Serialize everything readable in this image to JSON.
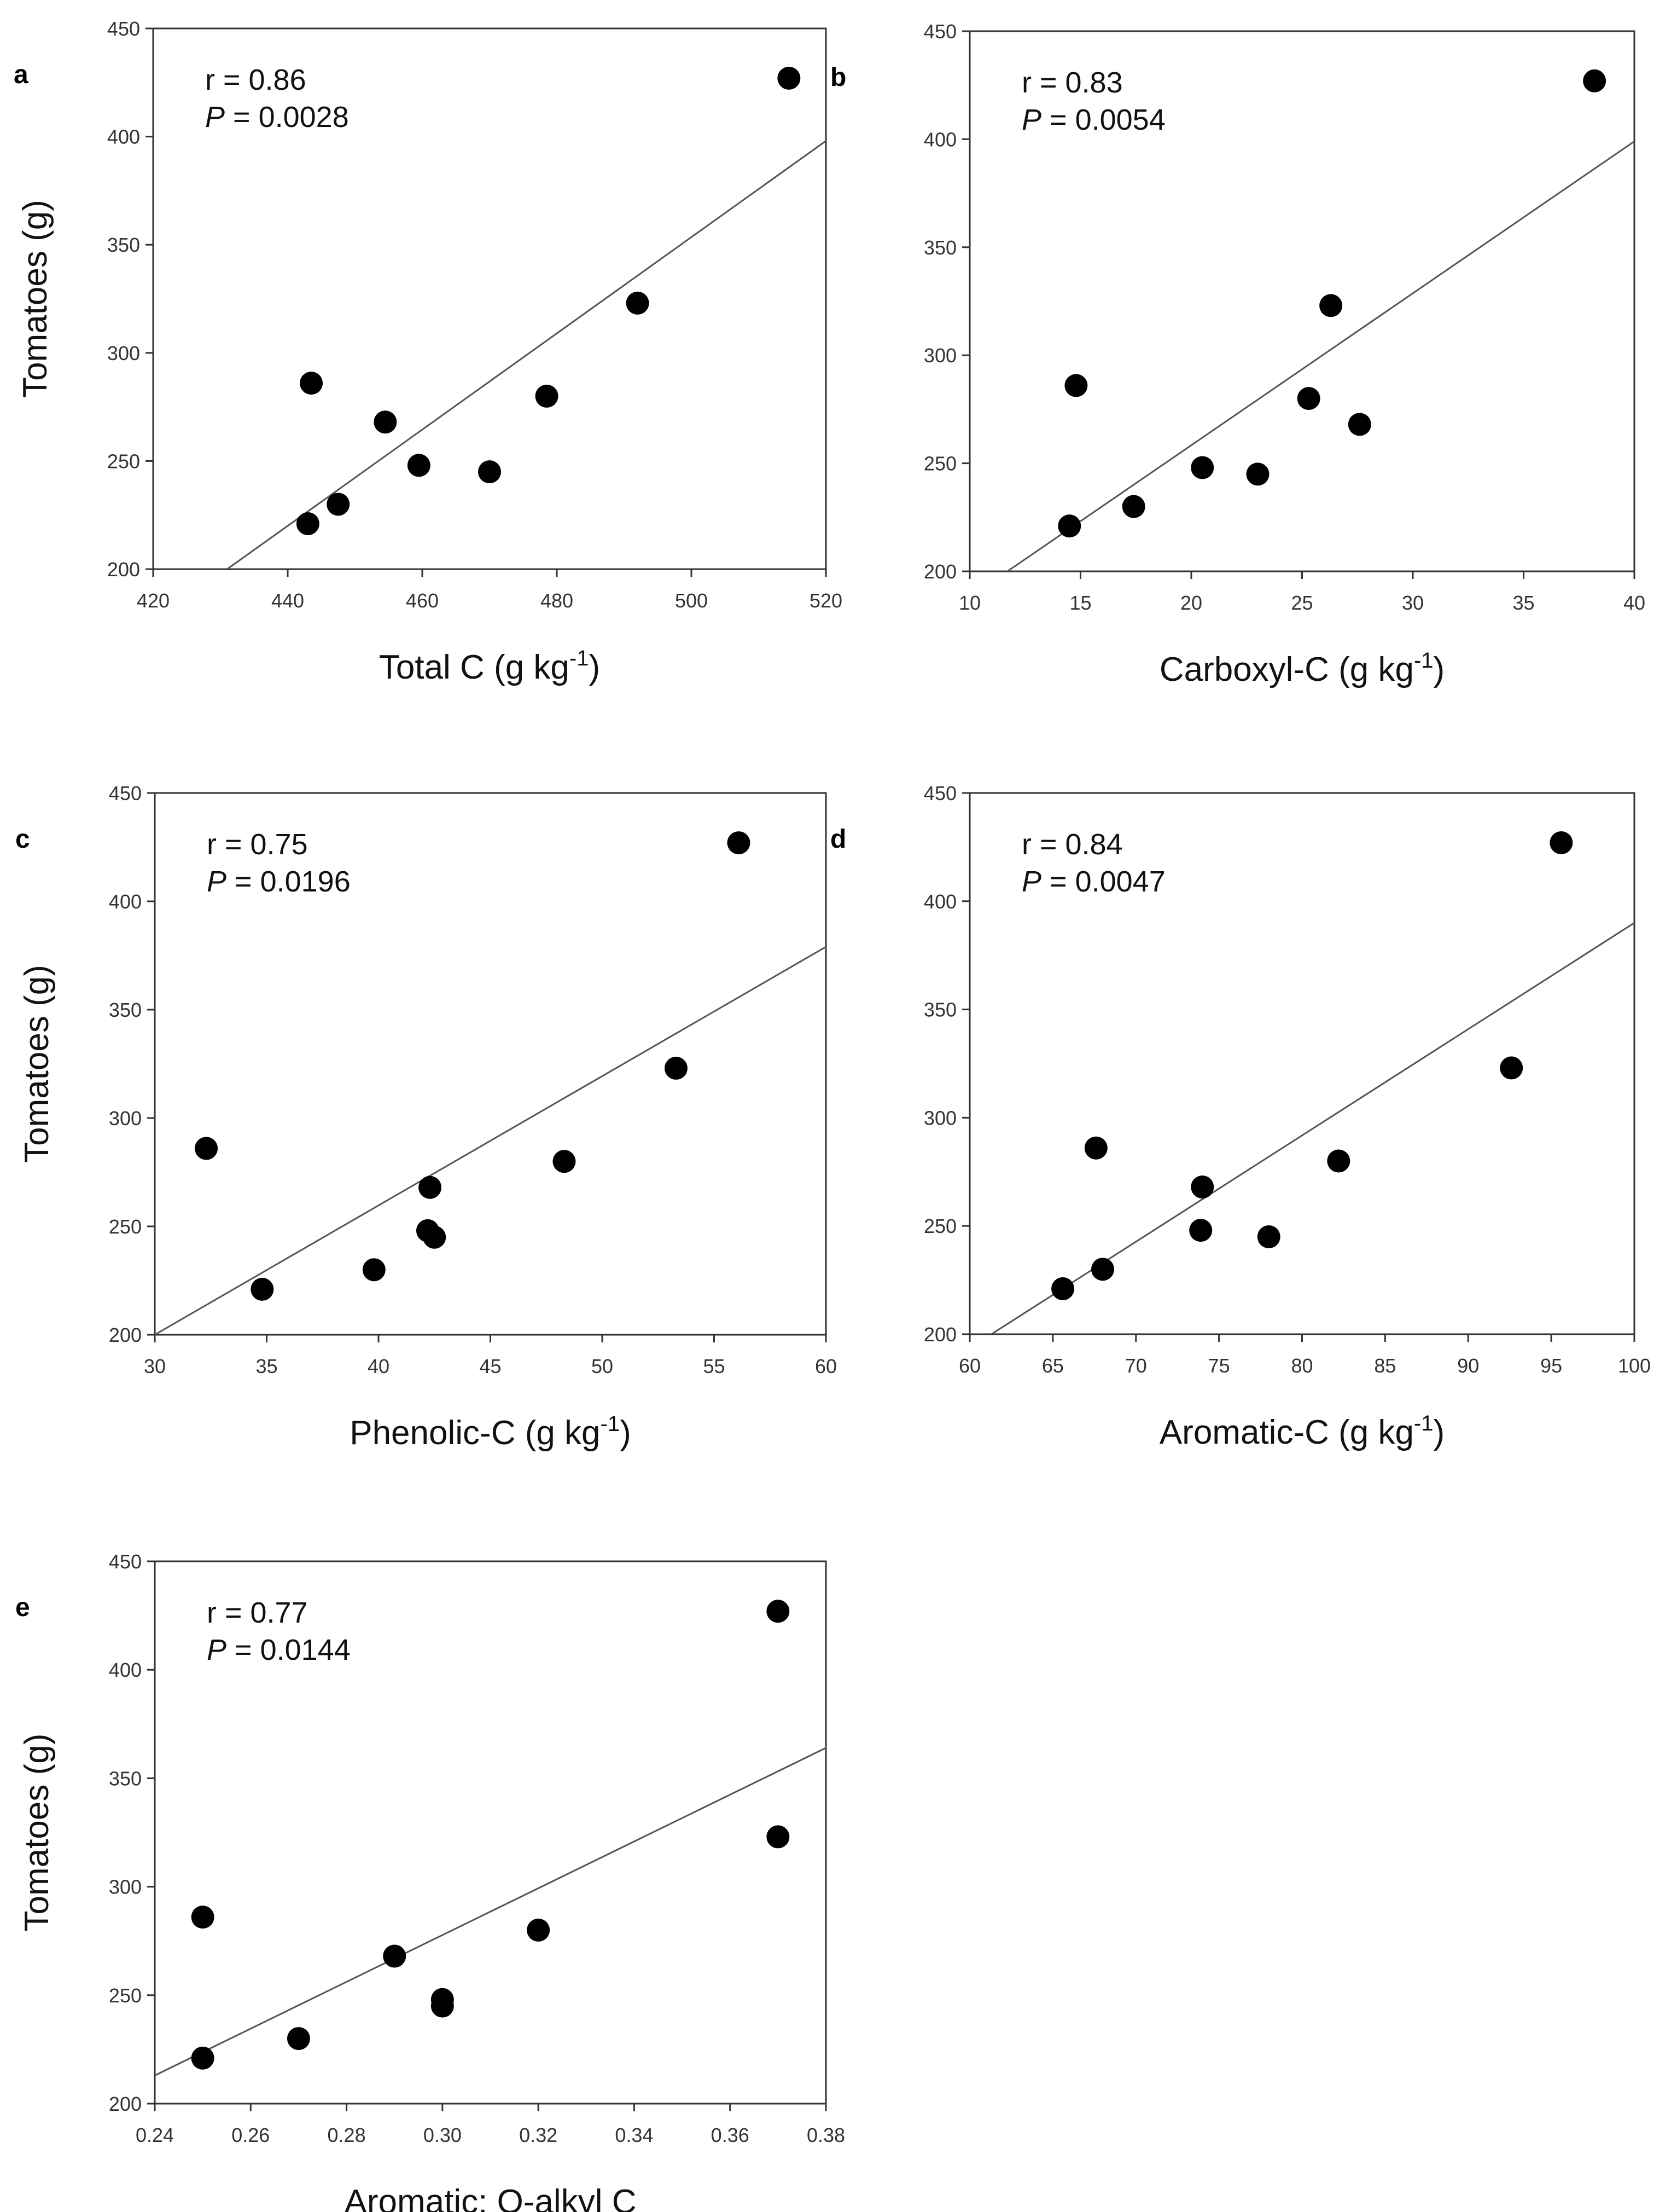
{
  "figure": {
    "y_axis_label": "Tomatoes (g)",
    "marker_color": "#000000",
    "line_color": "#555555",
    "frame_color": "#333333"
  },
  "chart_data": [
    {
      "panel": "a",
      "type": "scatter",
      "xlabel": "Total C (g kg",
      "xlabel_sup": "-1",
      "xlabel_close": ")",
      "ylabel": "Tomatoes (g)",
      "xlim": [
        420,
        520
      ],
      "ylim": [
        200,
        450
      ],
      "xticks": [
        "420",
        "440",
        "460",
        "480",
        "500",
        "520"
      ],
      "yticks": [
        "200",
        "250",
        "300",
        "350",
        "400",
        "450"
      ],
      "points": [
        {
          "x": 443,
          "y": 221
        },
        {
          "x": 443.5,
          "y": 286
        },
        {
          "x": 447.5,
          "y": 230
        },
        {
          "x": 454.5,
          "y": 268
        },
        {
          "x": 459.5,
          "y": 248
        },
        {
          "x": 470,
          "y": 245
        },
        {
          "x": 478.5,
          "y": 280
        },
        {
          "x": 492,
          "y": 323
        },
        {
          "x": 514.5,
          "y": 427
        }
      ],
      "fit": {
        "x1": 431,
        "y1": 200,
        "x2": 520,
        "y2": 398
      },
      "r_text": "r = 0.86",
      "p_label": "P",
      "p_value": " = 0.0028"
    },
    {
      "panel": "b",
      "type": "scatter",
      "xlabel": "Carboxyl-C (g kg",
      "xlabel_sup": "-1",
      "xlabel_close": ")",
      "ylabel": "",
      "xlim": [
        10,
        40
      ],
      "ylim": [
        200,
        450
      ],
      "xticks": [
        "10",
        "15",
        "20",
        "25",
        "30",
        "35",
        "40"
      ],
      "yticks": [
        "200",
        "250",
        "300",
        "350",
        "400",
        "450"
      ],
      "points": [
        {
          "x": 14.5,
          "y": 221
        },
        {
          "x": 14.8,
          "y": 286
        },
        {
          "x": 17.4,
          "y": 230
        },
        {
          "x": 20.5,
          "y": 248
        },
        {
          "x": 23,
          "y": 245
        },
        {
          "x": 25.3,
          "y": 280
        },
        {
          "x": 26.3,
          "y": 323
        },
        {
          "x": 27.6,
          "y": 268
        },
        {
          "x": 38.2,
          "y": 427
        }
      ],
      "fit": {
        "x1": 11.7,
        "y1": 200,
        "x2": 40,
        "y2": 399
      },
      "r_text": "r = 0.83",
      "p_label": "P",
      "p_value": " = 0.0054"
    },
    {
      "panel": "c",
      "type": "scatter",
      "xlabel": "Phenolic-C (g kg",
      "xlabel_sup": "-1",
      "xlabel_close": ")",
      "ylabel": "Tomatoes (g)",
      "xlim": [
        30,
        60
      ],
      "ylim": [
        200,
        450
      ],
      "xticks": [
        "30",
        "35",
        "40",
        "45",
        "50",
        "55",
        "60"
      ],
      "yticks": [
        "200",
        "250",
        "300",
        "350",
        "400",
        "450"
      ],
      "points": [
        {
          "x": 32.3,
          "y": 286
        },
        {
          "x": 34.8,
          "y": 221
        },
        {
          "x": 39.8,
          "y": 230
        },
        {
          "x": 42.3,
          "y": 268
        },
        {
          "x": 42.2,
          "y": 248
        },
        {
          "x": 42.5,
          "y": 245
        },
        {
          "x": 48.3,
          "y": 280
        },
        {
          "x": 53.3,
          "y": 323
        },
        {
          "x": 56.1,
          "y": 427
        }
      ],
      "fit": {
        "x1": 30,
        "y1": 200,
        "x2": 60,
        "y2": 379
      },
      "r_text": "r = 0.75",
      "p_label": "P",
      "p_value": " = 0.0196"
    },
    {
      "panel": "d",
      "type": "scatter",
      "xlabel": "Aromatic-C (g kg",
      "xlabel_sup": "-1",
      "xlabel_close": ")",
      "ylabel": "",
      "xlim": [
        60,
        100
      ],
      "ylim": [
        200,
        450
      ],
      "xticks": [
        "60",
        "65",
        "70",
        "75",
        "80",
        "85",
        "90",
        "95",
        "100"
      ],
      "yticks": [
        "200",
        "250",
        "300",
        "350",
        "400",
        "450"
      ],
      "points": [
        {
          "x": 65.6,
          "y": 221
        },
        {
          "x": 67.6,
          "y": 286
        },
        {
          "x": 68,
          "y": 230
        },
        {
          "x": 73.9,
          "y": 248
        },
        {
          "x": 74,
          "y": 268
        },
        {
          "x": 78,
          "y": 245
        },
        {
          "x": 82.2,
          "y": 280
        },
        {
          "x": 92.6,
          "y": 323
        },
        {
          "x": 95.6,
          "y": 427
        }
      ],
      "fit": {
        "x1": 61.3,
        "y1": 200,
        "x2": 100,
        "y2": 390
      },
      "r_text": "r = 0.84",
      "p_label": "P",
      "p_value": " = 0.0047"
    },
    {
      "panel": "e",
      "type": "scatter",
      "xlabel": "Aromatic: O-alkyl C",
      "xlabel_sup": "",
      "xlabel_close": "",
      "ylabel": "Tomatoes (g)",
      "xlim": [
        0.24,
        0.38
      ],
      "ylim": [
        200,
        450
      ],
      "xticks": [
        "0.24",
        "0.26",
        "0.28",
        "0.30",
        "0.32",
        "0.34",
        "0.36",
        "0.38"
      ],
      "yticks": [
        "200",
        "250",
        "300",
        "350",
        "400",
        "450"
      ],
      "points": [
        {
          "x": 0.25,
          "y": 221
        },
        {
          "x": 0.25,
          "y": 286
        },
        {
          "x": 0.27,
          "y": 230
        },
        {
          "x": 0.29,
          "y": 268
        },
        {
          "x": 0.3,
          "y": 248
        },
        {
          "x": 0.3,
          "y": 245
        },
        {
          "x": 0.32,
          "y": 280
        },
        {
          "x": 0.37,
          "y": 323
        },
        {
          "x": 0.37,
          "y": 427
        }
      ],
      "fit": {
        "x1": 0.24,
        "y1": 213,
        "x2": 0.38,
        "y2": 364
      },
      "r_text": "r = 0.77",
      "p_label": "P",
      "p_value": " = 0.0144"
    }
  ]
}
